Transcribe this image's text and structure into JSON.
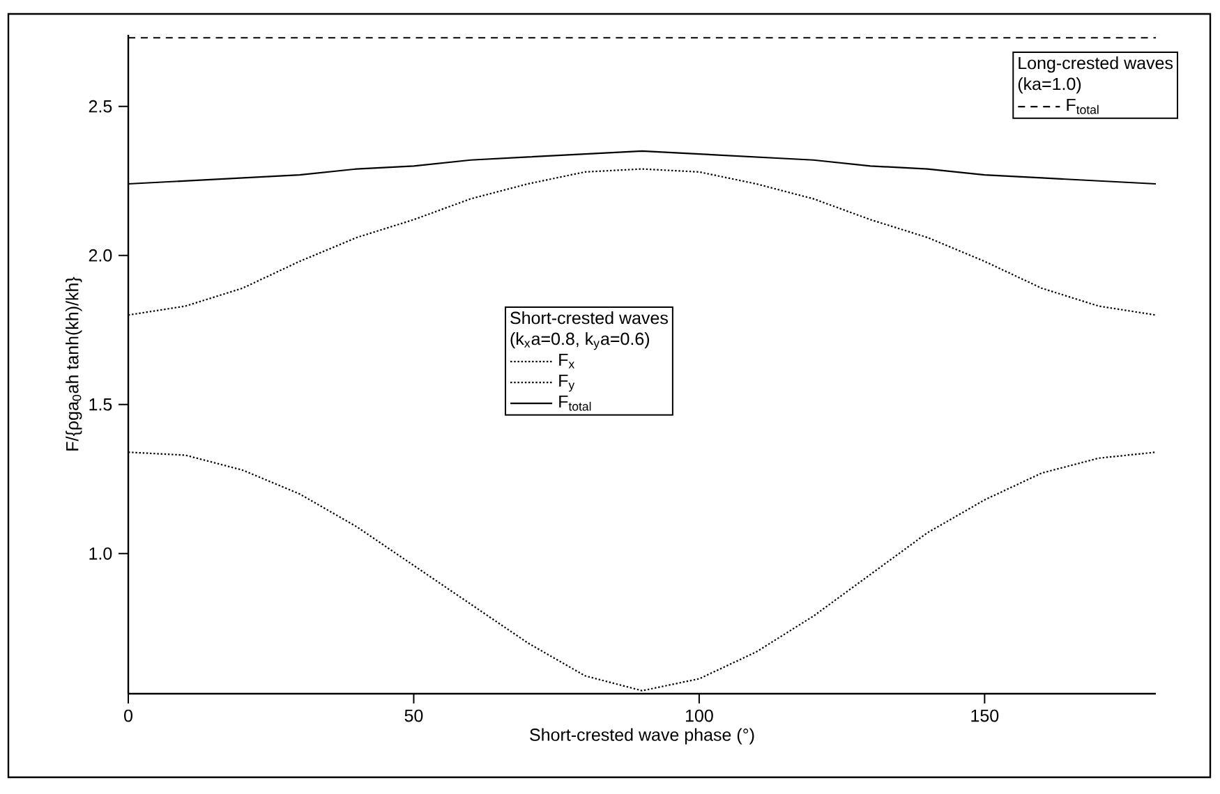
{
  "chart_data": {
    "type": "line",
    "xlabel": "Short-crested wave phase (°)",
    "ylabel": "F/{ρga$_{0}$ah tanh(kh)/kh}",
    "annotations": [
      "Long-crested waves",
      "(ka=1.0)",
      "Short-crested waves",
      "(k$_{x}$a=0.8, k$_{y}$a=0.6)"
    ],
    "x": [
      0,
      10,
      20,
      30,
      40,
      50,
      60,
      70,
      80,
      90,
      100,
      110,
      120,
      130,
      140,
      150,
      160,
      170,
      180
    ],
    "series": [
      {
        "name": "F$_{total}$",
        "color": "#000000",
        "line_style": "dashed",
        "x": [
          0,
          180
        ],
        "values": [
          2.73,
          2.73
        ]
      },
      {
        "name": "F$_{x}$",
        "color": "#000000",
        "line_style": "dotted",
        "values": [
          1.34,
          1.33,
          1.28,
          1.2,
          1.09,
          0.96,
          0.83,
          0.7,
          0.59,
          0.54,
          0.58,
          0.67,
          0.79,
          0.93,
          1.07,
          1.18,
          1.27,
          1.32,
          1.34
        ]
      },
      {
        "name": "F$_{y}$",
        "color": "#000000",
        "line_style": "dotted",
        "values": [
          1.8,
          1.83,
          1.89,
          1.98,
          2.06,
          2.12,
          2.19,
          2.24,
          2.28,
          2.29,
          2.28,
          2.24,
          2.19,
          2.12,
          2.06,
          1.98,
          1.89,
          1.83,
          1.8
        ]
      },
      {
        "name": "F$_{total}$",
        "color": "#000000",
        "line_style": "solid",
        "values": [
          2.24,
          2.25,
          2.26,
          2.27,
          2.29,
          2.3,
          2.32,
          2.33,
          2.34,
          2.35,
          2.34,
          2.33,
          2.32,
          2.3,
          2.29,
          2.27,
          2.26,
          2.25,
          2.24
        ]
      }
    ],
    "xlim": [
      0,
      180
    ],
    "ylim": [
      0.53,
      2.74
    ],
    "xticks": [
      0,
      50,
      100,
      150
    ],
    "yticks": [
      {
        "value": 1,
        "label": "1.0"
      },
      1.5,
      {
        "value": 2,
        "label": "2.0"
      },
      2.5
    ],
    "grid": false,
    "legend": "top right"
  }
}
